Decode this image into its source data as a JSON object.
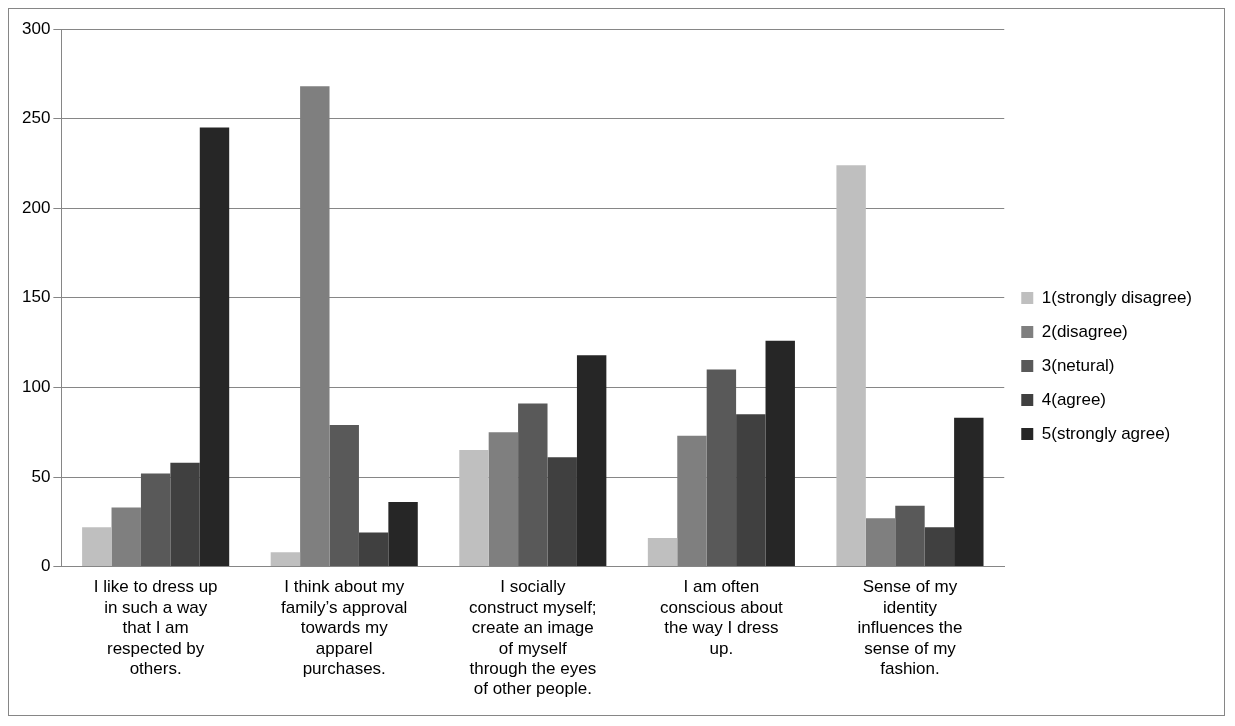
{
  "chart_data": {
    "type": "bar",
    "categories": [
      "I like to dress up in such a way that I am respected by others.",
      "I think about my family’s approval towards my apparel purchases.",
      "I socially construct myself; create an image of myself through the eyes of other people.",
      "I am often conscious about the way I dress up.",
      "Sense of my identity influences the sense of my fashion."
    ],
    "series": [
      {
        "name": "1(strongly disagree)",
        "color": "#bfbfbf",
        "values": [
          22,
          8,
          65,
          16,
          224
        ]
      },
      {
        "name": "2(disagree)",
        "color": "#7f7f7f",
        "values": [
          33,
          268,
          75,
          73,
          27
        ]
      },
      {
        "name": "3(netural)",
        "color": "#595959",
        "values": [
          52,
          79,
          91,
          110,
          34
        ]
      },
      {
        "name": "4(agree)",
        "color": "#404040",
        "values": [
          58,
          19,
          61,
          85,
          22
        ]
      },
      {
        "name": "5(strongly agree)",
        "color": "#262626",
        "values": [
          245,
          36,
          118,
          126,
          83
        ]
      }
    ],
    "ylim": [
      0,
      300
    ],
    "yticks": [
      0,
      50,
      100,
      150,
      200,
      250,
      300
    ],
    "grid": "y",
    "legend": "right"
  }
}
